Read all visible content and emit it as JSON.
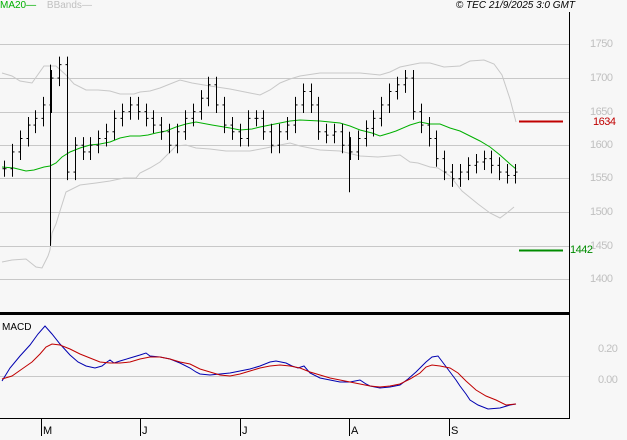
{
  "header": {
    "legend_ma": "MA20",
    "legend_bb": "BBands",
    "copyright": "© TEC 21/9/2025 3:0 GMT"
  },
  "levels": {
    "resistance": "1634",
    "support": "1442",
    "resistance_color": "#c00000",
    "support_color": "#008c00"
  },
  "y_axis": {
    "labels": [
      "1750",
      "1700",
      "1650",
      "1600",
      "1550",
      "1500",
      "1450",
      "1400"
    ]
  },
  "macd": {
    "title": "MACD",
    "labels": [
      "0.20",
      "0.00"
    ],
    "macd_color": "#0000b0",
    "signal_color": "#c00000"
  },
  "x_axis": {
    "labels": [
      "M",
      "J",
      "J",
      "A",
      "S"
    ]
  },
  "chart_data": [
    {
      "type": "line",
      "title": "Price (OHLC bars) with MA20 and Bollinger Bands",
      "xlabel": "",
      "ylabel": "",
      "ylim": [
        1380,
        1780
      ],
      "y_ticks": [
        1400,
        1450,
        1500,
        1550,
        1600,
        1650,
        1700,
        1750
      ],
      "x_ticks": [
        "M",
        "J",
        "J",
        "A",
        "S"
      ],
      "grid": true,
      "legend": [
        "MA20",
        "BBands"
      ],
      "annotations": [
        {
          "type": "hline",
          "value": 1634,
          "label": "1634",
          "color": "#c00000"
        },
        {
          "type": "hline",
          "value": 1442,
          "label": "1442",
          "color": "#008c00"
        }
      ],
      "series": [
        {
          "name": "Close (approx)",
          "values": [
            1565,
            1590,
            1610,
            1630,
            1640,
            1660,
            1700,
            1720,
            1560,
            1600,
            1590,
            1600,
            1610,
            1620,
            1640,
            1650,
            1660,
            1650,
            1640,
            1630,
            1620,
            1600,
            1620,
            1640,
            1650,
            1670,
            1690,
            1660,
            1630,
            1620,
            1610,
            1640,
            1640,
            1620,
            1600,
            1620,
            1630,
            1660,
            1680,
            1660,
            1620,
            1615,
            1620,
            1600,
            1590,
            1610,
            1625,
            1640,
            1660,
            1680,
            1690,
            1700,
            1650,
            1630,
            1610,
            1580,
            1560,
            1550,
            1560,
            1570,
            1575,
            1580,
            1570,
            1560,
            1555,
            1560
          ]
        },
        {
          "name": "MA20",
          "values": [
            1565,
            1562,
            1560,
            1568,
            1580,
            1595,
            1605,
            1615,
            1625,
            1630,
            1633,
            1635,
            1636,
            1630,
            1625,
            1625,
            1630,
            1634,
            1640,
            1642,
            1640,
            1638,
            1633,
            1625,
            1620,
            1630,
            1640,
            1630,
            1615,
            1580
          ]
        },
        {
          "name": "BBand Upper",
          "values": [
            1705,
            1700,
            1730,
            1710,
            1690,
            1670,
            1668,
            1680,
            1690,
            1690,
            1680,
            1680,
            1690,
            1700,
            1700,
            1695,
            1690,
            1690,
            1700,
            1720,
            1740,
            1740,
            1720,
            1650
          ]
        },
        {
          "name": "BBand Lower",
          "values": [
            1460,
            1455,
            1430,
            1480,
            1520,
            1540,
            1550,
            1570,
            1580,
            1590,
            1580,
            1565,
            1565,
            1575,
            1585,
            1590,
            1575,
            1560,
            1540,
            1500,
            1490,
            1500
          ]
        }
      ]
    },
    {
      "type": "line",
      "title": "MACD",
      "ylim": [
        -0.4,
        0.65
      ],
      "y_ticks": [
        0.0,
        0.2
      ],
      "grid": false,
      "series": [
        {
          "name": "MACD",
          "color": "#0000b0",
          "values": [
            -0.01,
            0.15,
            0.3,
            0.45,
            0.4,
            0.25,
            0.15,
            0.1,
            0.08,
            0.13,
            0.15,
            0.2,
            0.22,
            0.18,
            0.1,
            0.05,
            0.03,
            0.08,
            0.15,
            0.12,
            0.04,
            0.0,
            -0.03,
            -0.02,
            -0.06,
            -0.09,
            -0.06,
            0.0,
            0.08,
            0.15,
            0.22,
            0.16,
            0.0,
            -0.15,
            -0.25,
            -0.28,
            -0.27,
            -0.24,
            -0.24
          ]
        },
        {
          "name": "Signal",
          "color": "#c00000",
          "values": [
            -0.03,
            0.05,
            0.15,
            0.26,
            0.3,
            0.25,
            0.18,
            0.14,
            0.13,
            0.15,
            0.17,
            0.18,
            0.18,
            0.13,
            0.1,
            0.06,
            0.05,
            0.08,
            0.13,
            0.13,
            0.1,
            0.06,
            0.03,
            0.0,
            -0.02,
            -0.06,
            -0.07,
            -0.04,
            0.02,
            0.1,
            0.14,
            0.09,
            0.0,
            -0.1,
            -0.18,
            -0.22,
            -0.23,
            -0.23
          ]
        }
      ]
    }
  ]
}
